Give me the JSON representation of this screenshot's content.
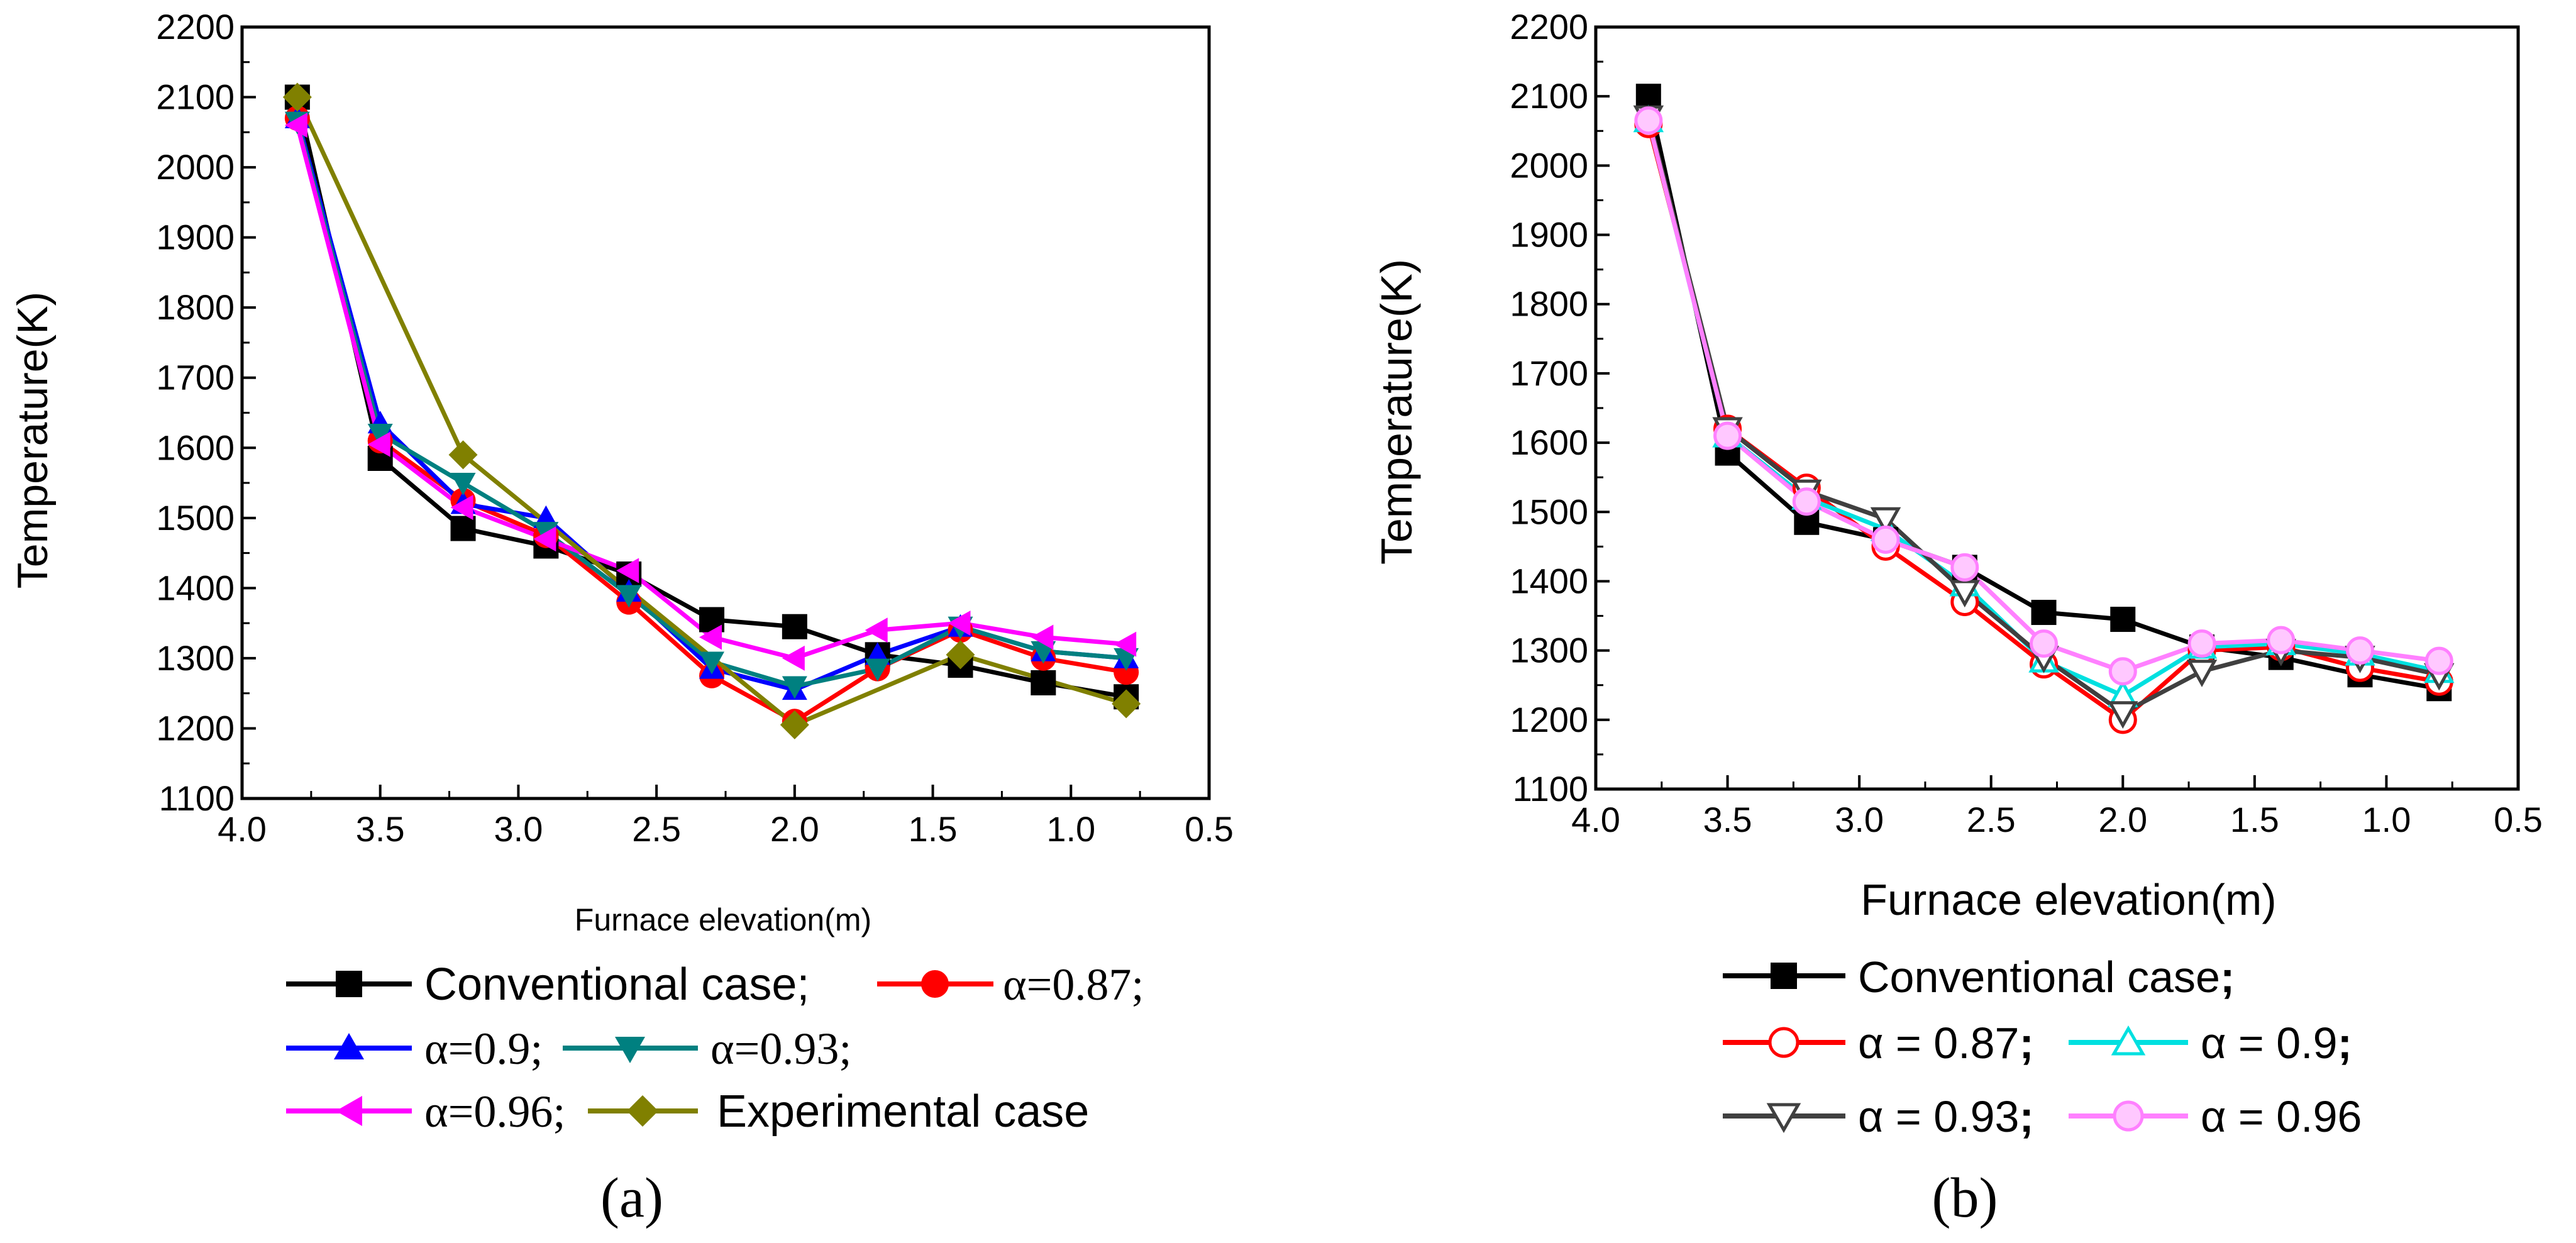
{
  "chart_data": [
    {
      "panel": "(a)",
      "type": "line",
      "xlabel": "Furnace elevation(m)",
      "ylabel": "Temperature(K)",
      "xlim": [
        4.0,
        0.5
      ],
      "ylim": [
        1100,
        2200
      ],
      "xticks": [
        "4.0",
        "3.5",
        "3.0",
        "2.5",
        "2.0",
        "1.5",
        "1.0",
        "0.5"
      ],
      "yticks": [
        "1100",
        "1200",
        "1300",
        "1400",
        "1500",
        "1600",
        "1700",
        "1800",
        "1900",
        "2000",
        "2100",
        "2200"
      ],
      "series": [
        {
          "name": "Conventional case;",
          "color": "#000000",
          "marker": "square",
          "x": [
            3.8,
            3.5,
            3.2,
            2.9,
            2.6,
            2.3,
            2.0,
            1.7,
            1.4,
            1.1,
            0.8
          ],
          "y": [
            2100,
            1585,
            1485,
            1460,
            1420,
            1355,
            1345,
            1305,
            1290,
            1265,
            1245
          ]
        },
        {
          "name": "α=0.87;",
          "color": "#ff0000",
          "marker": "circle",
          "x": [
            3.8,
            3.5,
            3.2,
            2.9,
            2.6,
            2.3,
            2.0,
            1.7,
            1.4,
            1.1,
            0.8
          ],
          "y": [
            2070,
            1610,
            1525,
            1475,
            1380,
            1275,
            1210,
            1285,
            1340,
            1300,
            1280
          ]
        },
        {
          "name": "α=0.9;",
          "color": "#0000ff",
          "marker": "triangle-up",
          "x": [
            3.8,
            3.5,
            3.2,
            2.9,
            2.6,
            2.3,
            2.0,
            1.7,
            1.4,
            1.1,
            0.8
          ],
          "y": [
            2070,
            1635,
            1520,
            1500,
            1395,
            1285,
            1255,
            1305,
            1345,
            1310,
            1300
          ]
        },
        {
          "name": "α=0.93;",
          "color": "#008080",
          "marker": "triangle-down",
          "x": [
            3.8,
            3.5,
            3.2,
            2.9,
            2.6,
            2.3,
            2.0,
            1.7,
            1.4,
            1.1,
            0.8
          ],
          "y": [
            2065,
            1620,
            1550,
            1480,
            1390,
            1295,
            1260,
            1285,
            1345,
            1310,
            1300
          ]
        },
        {
          "name": "α=0.96;",
          "color": "#ff00ff",
          "marker": "triangle-left",
          "x": [
            3.8,
            3.5,
            3.2,
            2.9,
            2.6,
            2.3,
            2.0,
            1.7,
            1.4,
            1.1,
            0.8
          ],
          "y": [
            2060,
            1605,
            1515,
            1470,
            1425,
            1330,
            1300,
            1340,
            1350,
            1330,
            1320
          ]
        },
        {
          "name": "Experimental case",
          "color": "#808000",
          "marker": "diamond",
          "x": [
            3.8,
            3.2,
            2.0,
            1.4,
            0.8
          ],
          "y": [
            2100,
            1590,
            1205,
            1305,
            1235
          ]
        }
      ]
    },
    {
      "panel": "(b)",
      "type": "line",
      "xlabel": "Furnace elevation(m)",
      "ylabel": "Temperature(K)",
      "xlim": [
        4.0,
        0.5
      ],
      "ylim": [
        1100,
        2200
      ],
      "xticks": [
        "4.0",
        "3.5",
        "3.0",
        "2.5",
        "2.0",
        "1.5",
        "1.0",
        "0.5"
      ],
      "yticks": [
        "1100",
        "1200",
        "1300",
        "1400",
        "1500",
        "1600",
        "1700",
        "1800",
        "1900",
        "2000",
        "2100",
        "2200"
      ],
      "series": [
        {
          "name": "Conventional case",
          "color": "#000000",
          "marker": "square",
          "filled": true,
          "x": [
            3.8,
            3.5,
            3.2,
            2.9,
            2.6,
            2.3,
            2.0,
            1.7,
            1.4,
            1.1,
            0.8
          ],
          "y": [
            2100,
            1585,
            1485,
            1460,
            1420,
            1355,
            1345,
            1305,
            1290,
            1265,
            1245
          ]
        },
        {
          "name": "α = 0.87",
          "color": "#ff0000",
          "marker": "circle",
          "filled": false,
          "x": [
            3.8,
            3.5,
            3.2,
            2.9,
            2.6,
            2.3,
            2.0,
            1.7,
            1.4,
            1.1,
            0.8
          ],
          "y": [
            2060,
            1620,
            1535,
            1450,
            1370,
            1280,
            1200,
            1300,
            1305,
            1275,
            1255
          ]
        },
        {
          "name": "α = 0.9",
          "color": "#00e0e0",
          "marker": "triangle-up",
          "filled": false,
          "x": [
            3.8,
            3.5,
            3.2,
            2.9,
            2.6,
            2.3,
            2.0,
            1.7,
            1.4,
            1.1,
            0.8
          ],
          "y": [
            2065,
            1610,
            1520,
            1475,
            1395,
            1285,
            1235,
            1305,
            1310,
            1295,
            1270
          ]
        },
        {
          "name": "α = 0.93",
          "color": "#404040",
          "marker": "triangle-down",
          "filled": false,
          "x": [
            3.8,
            3.5,
            3.2,
            2.9,
            2.6,
            2.3,
            2.0,
            1.7,
            1.4,
            1.1,
            0.8
          ],
          "y": [
            2070,
            1620,
            1530,
            1490,
            1385,
            1290,
            1210,
            1270,
            1300,
            1290,
            1265
          ]
        },
        {
          "name": "α = 0.96",
          "color": "#ff80ff",
          "marker": "circle",
          "filled": false,
          "x": [
            3.8,
            3.5,
            3.2,
            2.9,
            2.6,
            2.3,
            2.0,
            1.7,
            1.4,
            1.1,
            0.8
          ],
          "y": [
            2065,
            1610,
            1515,
            1460,
            1420,
            1310,
            1270,
            1310,
            1315,
            1300,
            1285
          ]
        }
      ]
    }
  ],
  "legend_a": {
    "row1": {
      "s0": "Conventional case;",
      "s1": "α=0.87;"
    },
    "row2": {
      "s2": "α=0.9;",
      "s3": "α=0.93;"
    },
    "row3": {
      "s4": "α=0.96;",
      "s5": "Experimental case"
    }
  },
  "legend_b": {
    "row1": {
      "s0_label": "Conventional case",
      "s0_sep": ";"
    },
    "row2": {
      "s1_label": "α = 0.87",
      "s1_sep": ";",
      "s2_label": "α = 0.9",
      "s2_sep": ";"
    },
    "row3": {
      "s3_label": "α = 0.93",
      "s3_sep": ";",
      "s4_label": "α = 0.96"
    }
  },
  "captions": {
    "a": "(a)",
    "b": "(b)"
  }
}
